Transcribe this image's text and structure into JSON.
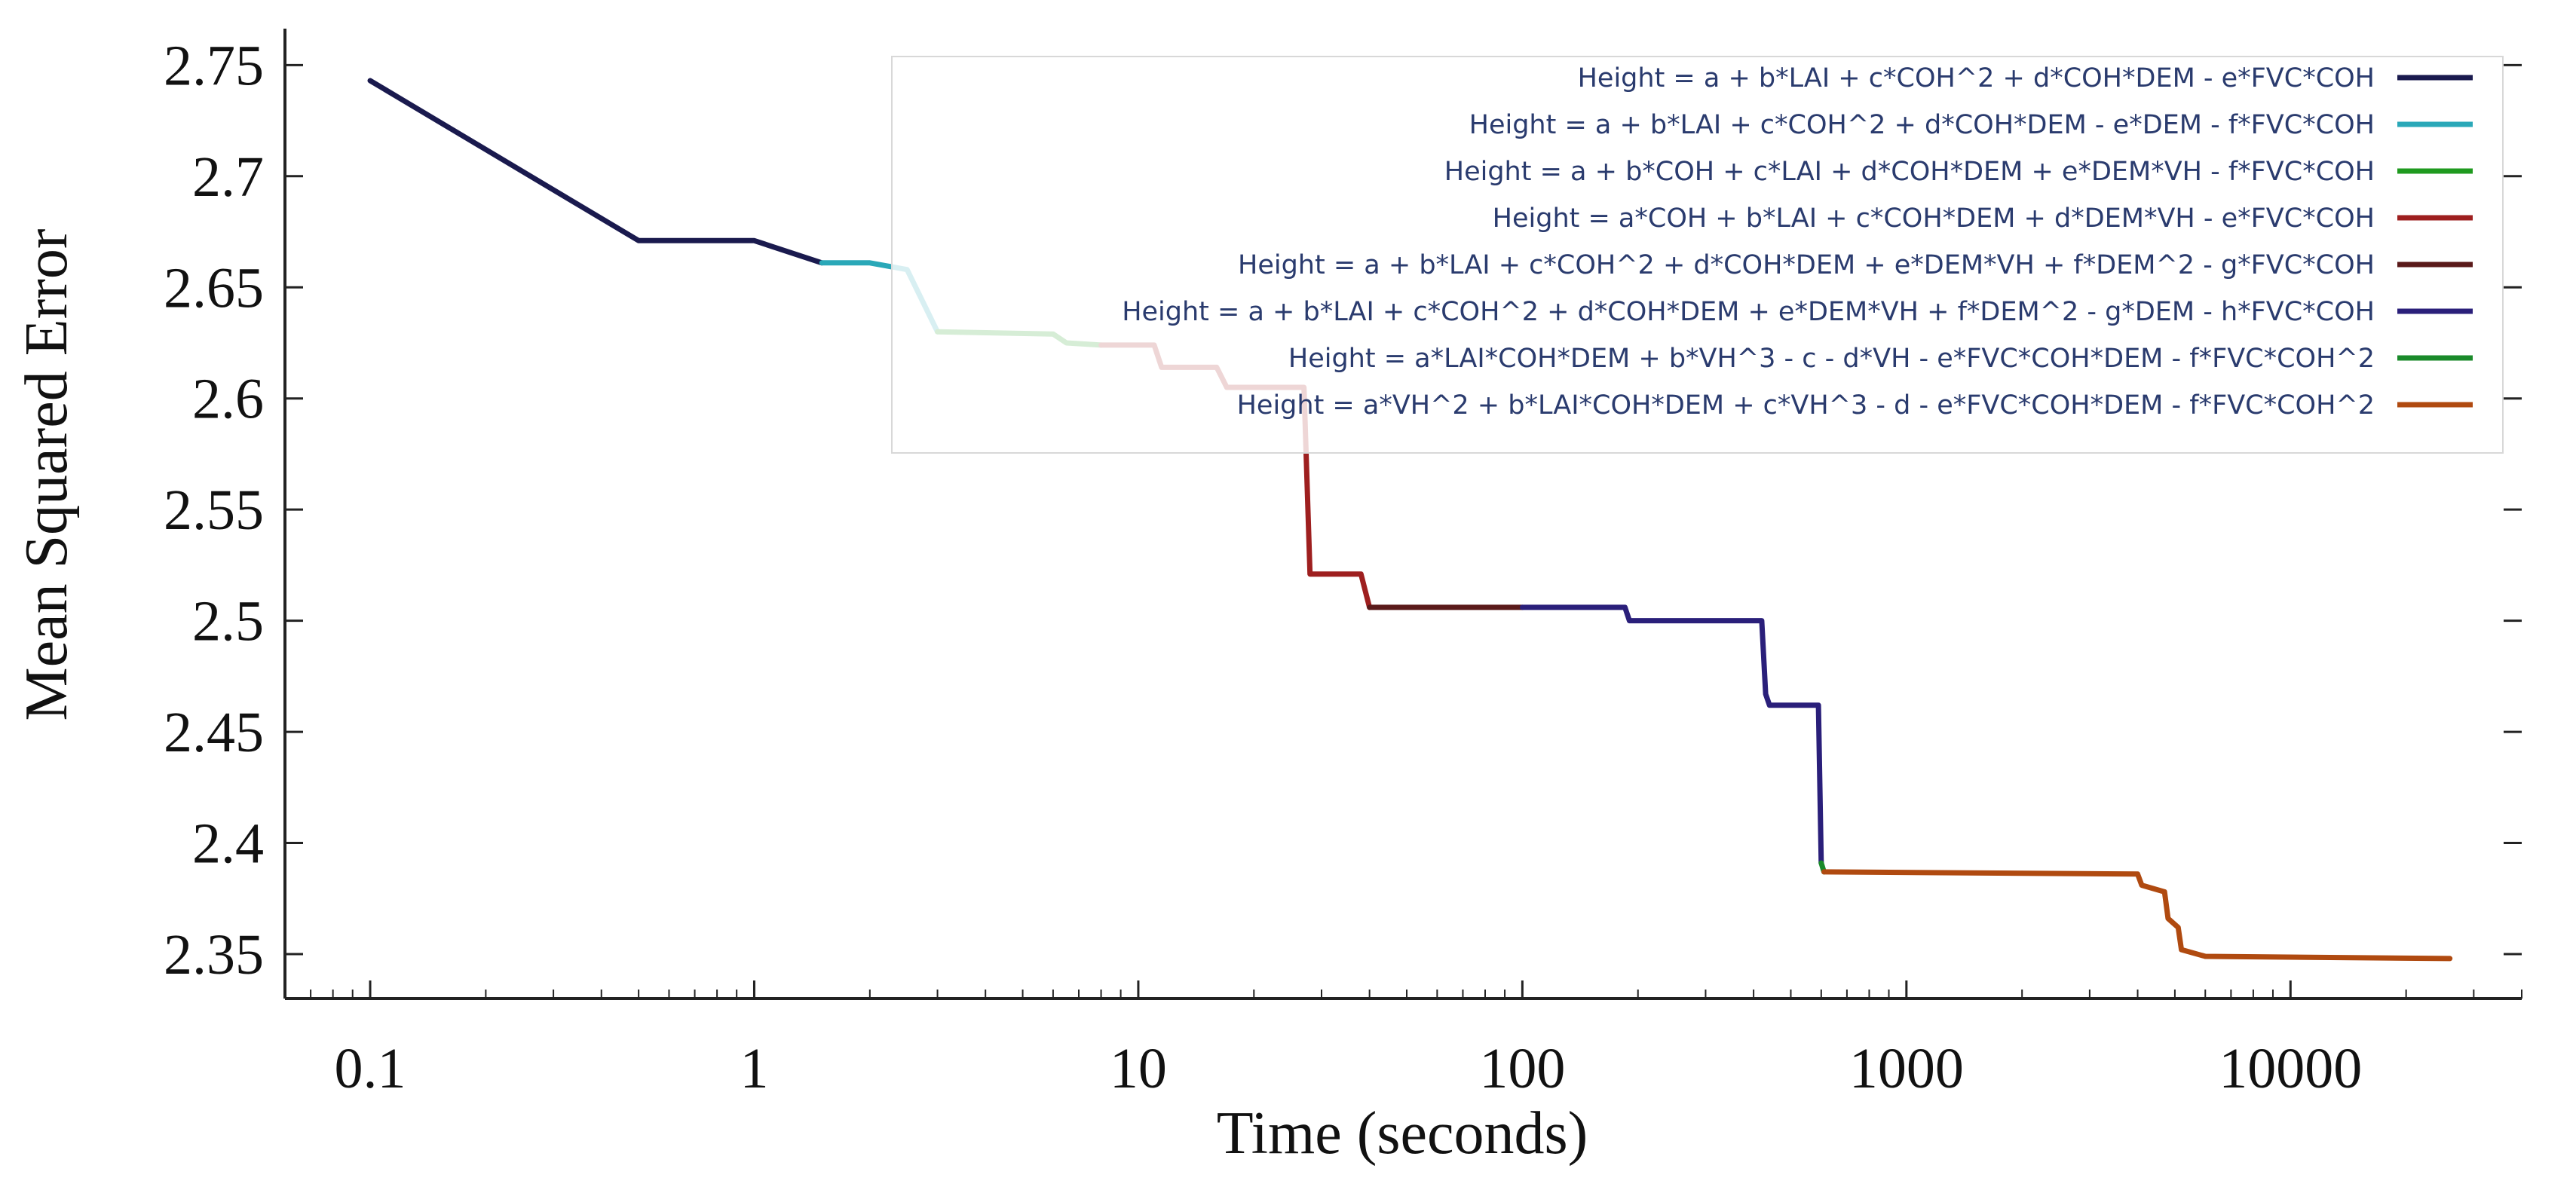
{
  "chart_data": {
    "type": "line",
    "title": "",
    "xlabel": "Time (seconds)",
    "ylabel": "Mean Squared Error",
    "xscale": "log",
    "xlim": [
      0.06,
      40000
    ],
    "ylim": [
      2.33,
      2.763
    ],
    "x_ticks": [
      0.1,
      1,
      10,
      100,
      1000,
      10000
    ],
    "x_tick_labels": [
      "0.1",
      "1",
      "10",
      "100",
      "1000",
      "10000"
    ],
    "y_ticks": [
      2.35,
      2.4,
      2.45,
      2.5,
      2.55,
      2.6,
      2.65,
      2.7,
      2.75
    ],
    "y_tick_labels": [
      "2.35",
      "2.4",
      "2.45",
      "2.5",
      "2.55",
      "2.6",
      "2.65",
      "2.7",
      "2.75"
    ],
    "grid": false,
    "legend_position": "top-right",
    "series": [
      {
        "name": "Height = a + b*LAI + c*COH^2 + d*COH*DEM - e*FVC*COH",
        "color": "#1a1a4e",
        "points": [
          [
            0.1,
            2.743
          ],
          [
            0.5,
            2.671
          ],
          [
            1.0,
            2.671
          ],
          [
            1.5,
            2.661
          ]
        ]
      },
      {
        "name": "Height = a + b*LAI + c*COH^2 + d*COH*DEM - e*DEM - f*FVC*COH",
        "color": "#2aa8b8",
        "points": [
          [
            1.5,
            2.661
          ],
          [
            2.0,
            2.661
          ],
          [
            2.5,
            2.658
          ],
          [
            3.0,
            2.63
          ]
        ]
      },
      {
        "name": "Height = a + b*COH + c*LAI + d*COH*DEM + e*DEM*VH - f*FVC*COH",
        "color": "#1f9a1f",
        "points": [
          [
            3.0,
            2.63
          ],
          [
            6.0,
            2.629
          ],
          [
            6.5,
            2.625
          ],
          [
            8.0,
            2.624
          ]
        ]
      },
      {
        "name": "Height = a*COH + b*LAI + c*COH*DEM + d*DEM*VH - e*FVC*COH",
        "color": "#9e1f1f",
        "points": [
          [
            8.0,
            2.624
          ],
          [
            11.0,
            2.624
          ],
          [
            11.5,
            2.614
          ],
          [
            16.0,
            2.614
          ],
          [
            17.0,
            2.605
          ],
          [
            27.0,
            2.605
          ],
          [
            28.0,
            2.521
          ],
          [
            38.0,
            2.521
          ],
          [
            40.0,
            2.506
          ]
        ]
      },
      {
        "name": "Height = a + b*LAI + c*COH^2 + d*COH*DEM + e*DEM*VH + f*DEM^2 - g*FVC*COH",
        "color": "#5a1a1a",
        "points": [
          [
            40.0,
            2.506
          ],
          [
            100.0,
            2.506
          ]
        ]
      },
      {
        "name": "Height = a + b*LAI + c*COH^2 + d*COH*DEM + e*DEM*VH + f*DEM^2 - g*DEM - h*FVC*COH",
        "color": "#2a1f7a",
        "points": [
          [
            100.0,
            2.506
          ],
          [
            185.0,
            2.506
          ],
          [
            190.0,
            2.5
          ],
          [
            420.0,
            2.5
          ],
          [
            430.0,
            2.467
          ],
          [
            440.0,
            2.462
          ],
          [
            590.0,
            2.462
          ],
          [
            600.0,
            2.391
          ]
        ]
      },
      {
        "name": "Height = a*LAI*COH*DEM + b*VH^3 - c - d*VH - e*FVC*COH*DEM - f*FVC*COH^2",
        "color": "#1a8a2a",
        "points": [
          [
            600.0,
            2.391
          ],
          [
            610.0,
            2.387
          ]
        ]
      },
      {
        "name": "Height = a*VH^2 + b*LAI*COH*DEM + c*VH^3 - d - e*FVC*COH*DEM - f*FVC*COH^2",
        "color": "#b04a10",
        "points": [
          [
            610.0,
            2.387
          ],
          [
            4000.0,
            2.386
          ],
          [
            4100.0,
            2.381
          ],
          [
            4700.0,
            2.378
          ],
          [
            4800.0,
            2.366
          ],
          [
            5100.0,
            2.362
          ],
          [
            5200.0,
            2.352
          ],
          [
            6000.0,
            2.349
          ],
          [
            26000.0,
            2.348
          ]
        ]
      }
    ]
  }
}
